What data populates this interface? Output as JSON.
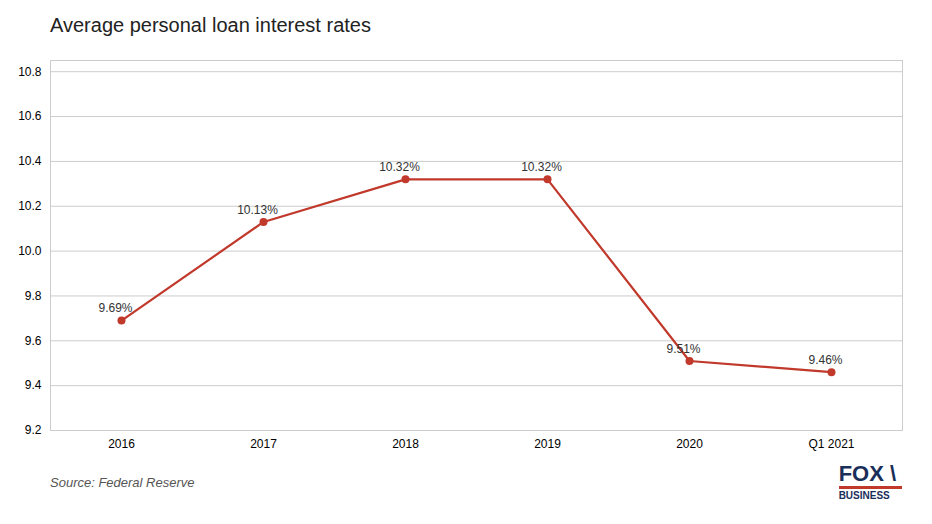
{
  "chart_data": {
    "type": "line",
    "title": "Average personal loan interest rates",
    "categories": [
      "2016",
      "2017",
      "2018",
      "2019",
      "2020",
      "Q1 2021"
    ],
    "values": [
      9.69,
      10.13,
      10.32,
      10.32,
      9.51,
      9.46
    ],
    "value_labels": [
      "9.69%",
      "10.13%",
      "10.32%",
      "10.32%",
      "9.51%",
      "9.46%"
    ],
    "data_labels": true,
    "color": "#c0392b",
    "marker": "circle",
    "ylim": [
      9.2,
      10.85
    ],
    "yticks": [
      9.2,
      9.4,
      9.6,
      9.8,
      {
        "value": 10.0,
        "label": "10.0"
      },
      10.2,
      10.4,
      10.6,
      10.8
    ],
    "grid": true,
    "annotations": [
      "Source: Federal Reserve",
      "FOX",
      "\\",
      "BUSINESS"
    ]
  }
}
